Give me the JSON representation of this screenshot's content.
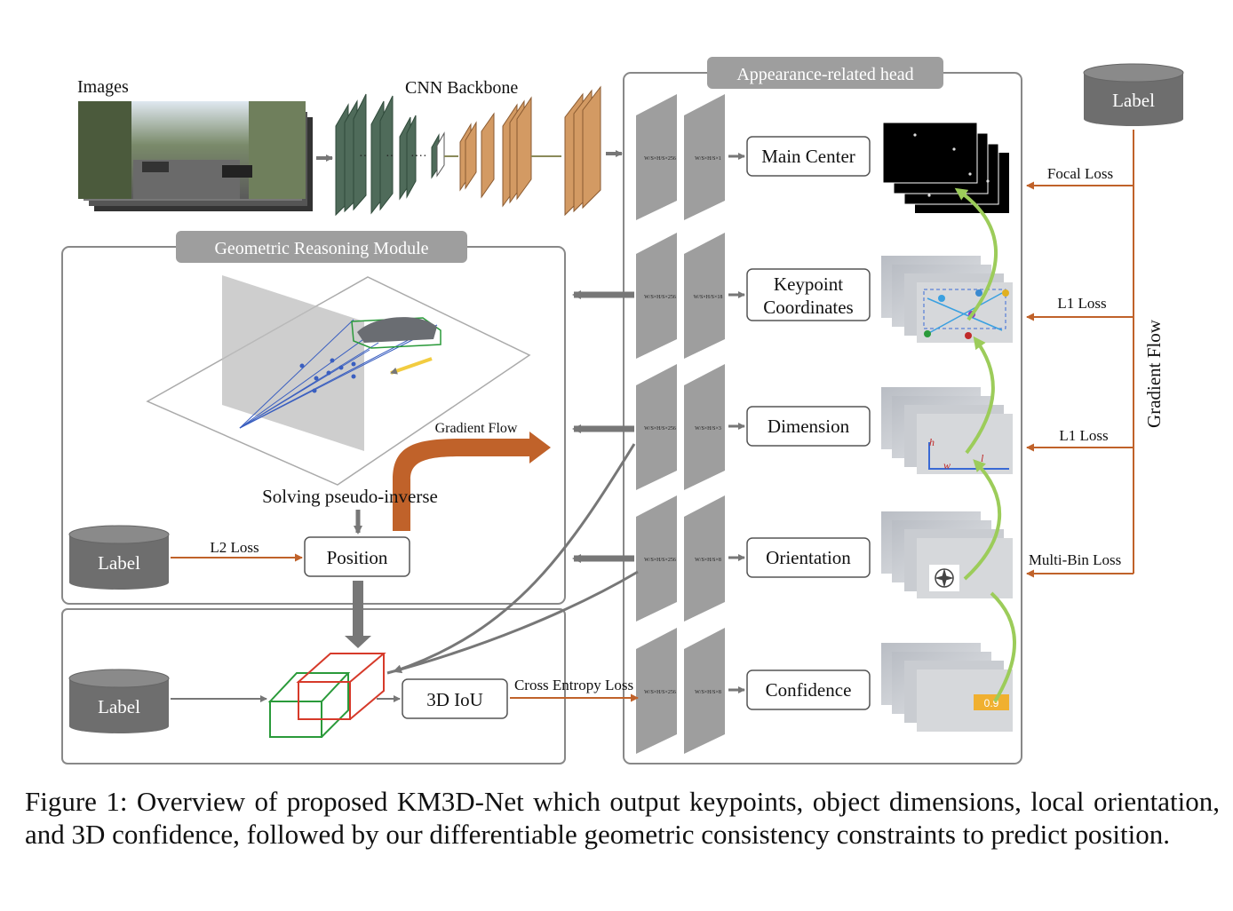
{
  "images_label": "Images",
  "backbone_label": "CNN Backbone",
  "appearance_head_title": "Appearance-related head",
  "geometric_module_title": "Geometric Reasoning Module",
  "heads": [
    {
      "label": "Main Center",
      "f1": "W/S×H/S×256",
      "f2": "W/S×H/S×1"
    },
    {
      "label": "Keypoint Coordinates",
      "f1": "W/S×H/S×256",
      "f2": "W/S×H/S×18"
    },
    {
      "label": "Dimension",
      "f1": "W/S×H/S×256",
      "f2": "W/S×H/S×3"
    },
    {
      "label": "Orientation",
      "f1": "W/S×H/S×256",
      "f2": "W/S×H/S×8"
    },
    {
      "label": "Confidence",
      "f1": "W/S×H/S×256",
      "f2": "W/S×H/S×8"
    }
  ],
  "losses": {
    "focal": "Focal Loss",
    "l1_a": "L1 Loss",
    "l1_b": "L1 Loss",
    "multibin": "Multi-Bin Loss",
    "l2": "L2 Loss",
    "cross_entropy": "Cross Entropy Loss"
  },
  "label_text": "Label",
  "gradient_flow_vertical": "Gradient Flow",
  "gradient_flow_arrow": "Gradient Flow",
  "solving": "Solving pseudo-inverse",
  "position": "Position",
  "iou": "3D IoU",
  "confidence_value": "0.9",
  "dim_letters": {
    "h": "h",
    "w": "w",
    "l": "l"
  },
  "caption": "Figure 1: Overview of proposed KM3D-Net which output keypoints, object dimensions, local orientation, and 3D confidence, followed by our differentiable geometric consistency constraints to predict position.",
  "colors": {
    "loss": "#c0622a",
    "green_arrow": "#9ccc5a",
    "gray_panel": "#9e9e9e",
    "backbone_green": "#4f6b5a",
    "backbone_orange": "#d39a63"
  }
}
